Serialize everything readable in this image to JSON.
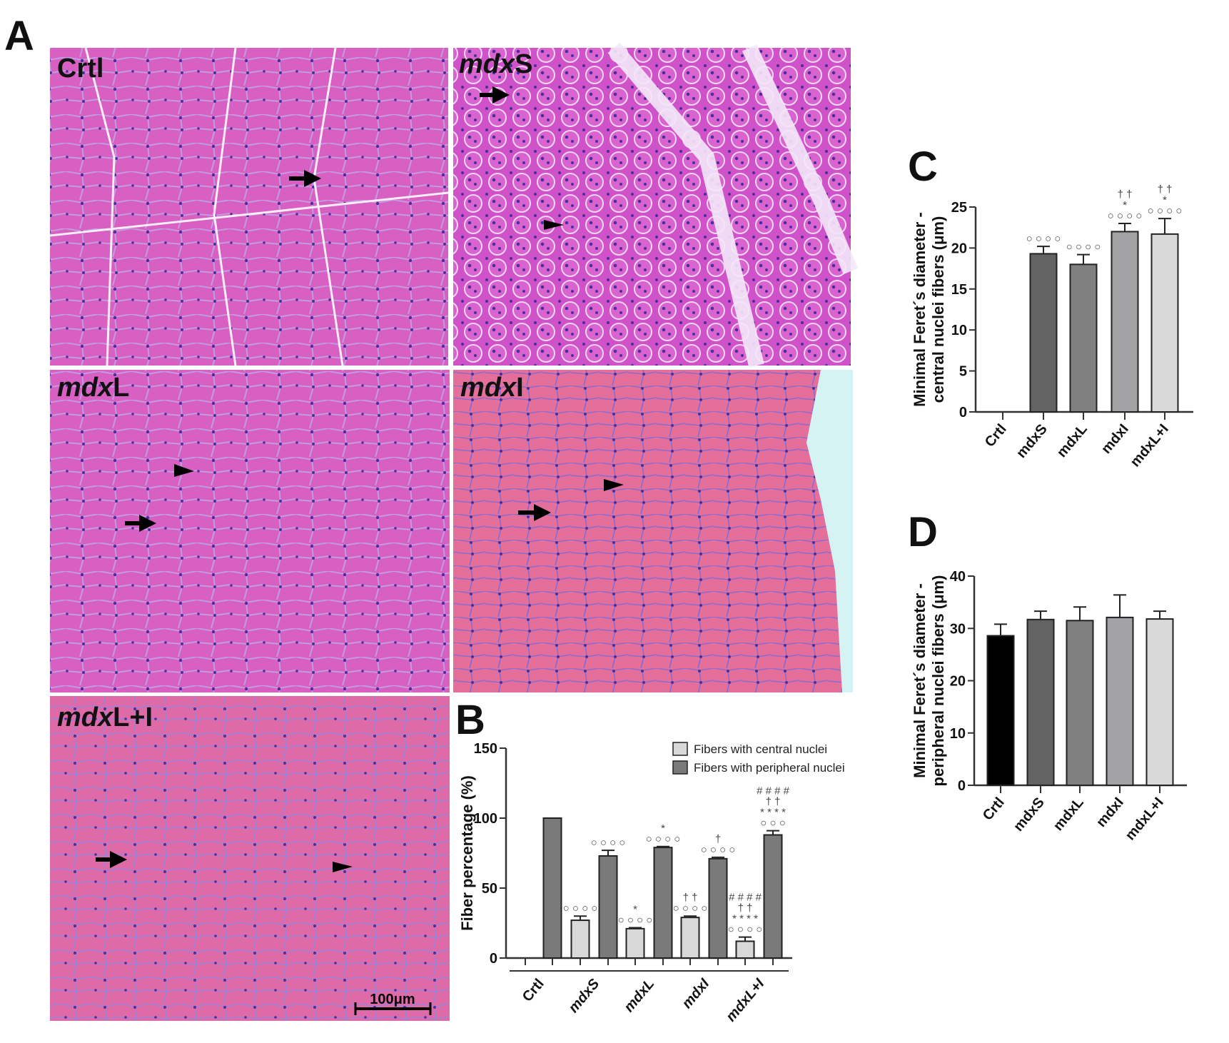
{
  "panel_letters": {
    "A": "A",
    "B": "B",
    "C": "C",
    "D": "D"
  },
  "micrographs": [
    {
      "id": "crtl",
      "label_italic": "",
      "label_normal": "Crtl"
    },
    {
      "id": "mdxS",
      "label_italic": "mdx",
      "label_normal": "S"
    },
    {
      "id": "mdxL",
      "label_italic": "mdx",
      "label_normal": "L"
    },
    {
      "id": "mdxI",
      "label_italic": "mdx",
      "label_normal": "I"
    },
    {
      "id": "mdxLI",
      "label_italic": "mdx",
      "label_normal": "L+I"
    }
  ],
  "scale_bar": {
    "label": "100μm"
  },
  "colors": {
    "tissue": "#d95fc4",
    "tissue_dark": "#b43fb0",
    "nuclei": "#4b2e9a",
    "membrane": "#f4e6f8"
  },
  "chart_data": [
    {
      "panel": "B",
      "type": "bar",
      "categories": [
        "Crtl",
        "mdxS",
        "mdxL",
        "mdxI",
        "mdxL+I"
      ],
      "ylabel": "Fiber percentage (%)",
      "ylim": [
        0,
        150
      ],
      "yticks": [
        "0",
        "50",
        "100",
        "150"
      ],
      "legend_position": "top-right",
      "series": [
        {
          "name": "Fibers with central nuclei",
          "color": "#d8d8d8",
          "values": [
            0,
            27,
            21,
            29,
            12
          ],
          "errors": [
            0,
            3,
            0.7,
            1,
            3
          ],
          "annotations": [
            [],
            [
              "oooo"
            ],
            [
              "oooo",
              "*"
            ],
            [
              "oooo",
              "††"
            ],
            [
              "oooo",
              "****",
              "††",
              "####"
            ]
          ]
        },
        {
          "name": "Fibers with peripheral nuclei",
          "color": "#7a7a7a",
          "values": [
            100,
            73,
            79,
            71,
            88
          ],
          "errors": [
            0,
            4,
            0.7,
            1,
            3
          ],
          "annotations": [
            [],
            [
              "oooo"
            ],
            [
              "oooo",
              "*"
            ],
            [
              "oooo",
              "†"
            ],
            [
              "ooo",
              "****",
              "††",
              "####"
            ]
          ]
        }
      ]
    },
    {
      "panel": "C",
      "type": "bar",
      "categories": [
        "Crtl",
        "mdxS",
        "mdxL",
        "mdxI",
        "mdxL+I"
      ],
      "ylabel": [
        "Minimal Feret´s diameter -",
        "central nuclei fibers (μm)"
      ],
      "ylim": [
        0,
        25
      ],
      "yticks": [
        "0",
        "5",
        "10",
        "15",
        "20",
        "25"
      ],
      "colors": [
        "#000000",
        "#636363",
        "#808080",
        "#a3a3a6",
        "#d9d9d9"
      ],
      "values": [
        0,
        19.3,
        18.0,
        22.0,
        21.7
      ],
      "errors": [
        0,
        0.9,
        1.2,
        1.0,
        1.9
      ],
      "annotations": [
        [],
        [
          "oooo"
        ],
        [
          "oooo"
        ],
        [
          "oooo",
          "*",
          "††"
        ],
        [
          "oooo",
          "*",
          "††"
        ]
      ]
    },
    {
      "panel": "D",
      "type": "bar",
      "categories": [
        "Crtl",
        "mdxS",
        "mdxL",
        "mdxI",
        "mdxL+I"
      ],
      "ylabel": [
        "Minimal Feret´s diameter -",
        "peripheral nuclei fibers (μm)"
      ],
      "ylim": [
        0,
        40
      ],
      "yticks": [
        "0",
        "10",
        "20",
        "30",
        "40"
      ],
      "colors": [
        "#000000",
        "#636363",
        "#808080",
        "#a3a3a6",
        "#d9d9d9"
      ],
      "values": [
        28.6,
        31.7,
        31.5,
        32.1,
        31.8
      ],
      "errors": [
        2.2,
        1.6,
        2.6,
        4.3,
        1.5
      ],
      "annotations": [
        [],
        [],
        [],
        [],
        []
      ]
    }
  ]
}
